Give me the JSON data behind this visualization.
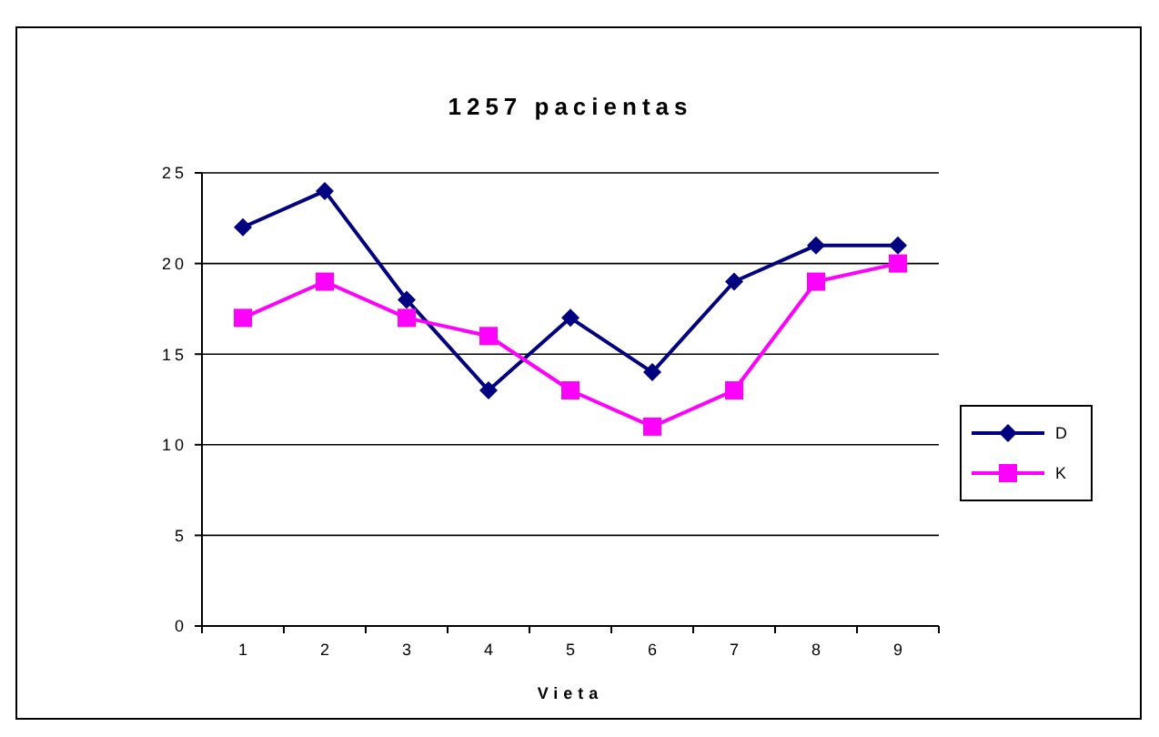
{
  "chart_data": {
    "type": "line",
    "title": "1257 pacientas",
    "xlabel": "Vieta",
    "categories": [
      "1",
      "2",
      "3",
      "4",
      "5",
      "6",
      "7",
      "8",
      "9"
    ],
    "series": [
      {
        "name": "D",
        "color": "#000080",
        "values": [
          22,
          24,
          18,
          13,
          17,
          14,
          19,
          21,
          21
        ],
        "marker": "diamond"
      },
      {
        "name": "K",
        "color": "#ff00ff",
        "values": [
          17,
          19,
          17,
          16,
          13,
          11,
          13,
          19,
          20
        ],
        "marker": "square"
      }
    ],
    "ylim": [
      0,
      25
    ],
    "yticks": [
      0,
      5,
      10,
      15,
      20,
      25
    ],
    "grid": "y",
    "legend": "right"
  }
}
